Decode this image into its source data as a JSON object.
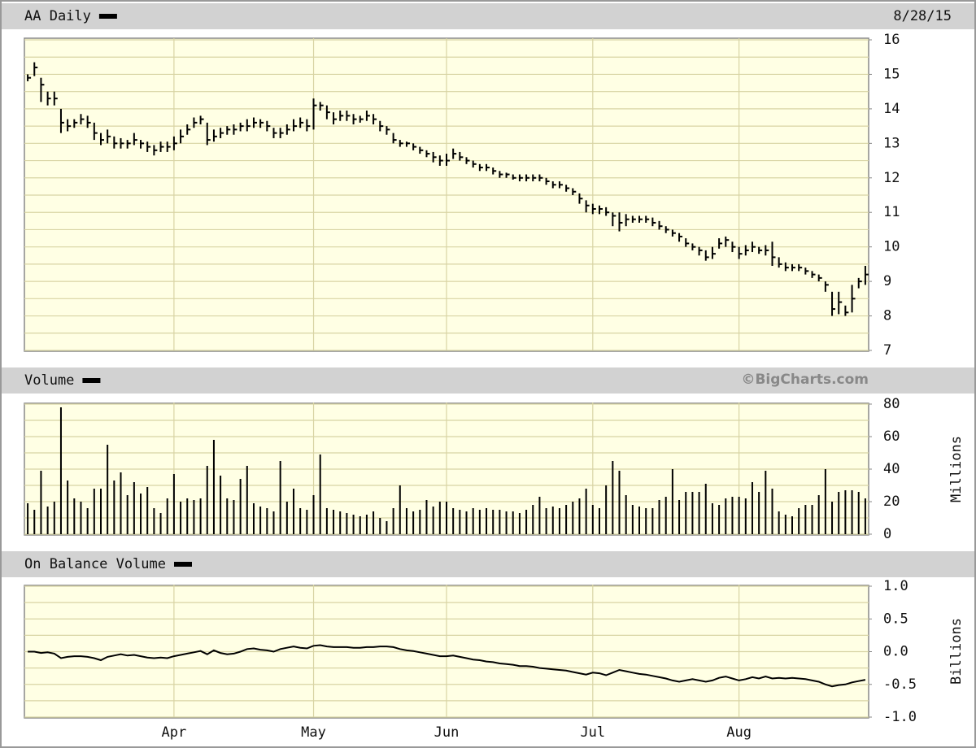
{
  "chart_data": [
    {
      "type": "ohlc",
      "title": "AA Daily",
      "date": "8/28/15",
      "color": "#000000",
      "ylim": [
        7,
        16
      ],
      "yticks": [
        7,
        8,
        9,
        10,
        11,
        12,
        13,
        14,
        15,
        16
      ],
      "ygrid": [
        7,
        7.5,
        8,
        8.5,
        9,
        9.5,
        10,
        10.5,
        11,
        11.5,
        12,
        12.5,
        13,
        13.5,
        14,
        14.5,
        15,
        15.5,
        16
      ],
      "high": [
        15.0,
        15.35,
        14.9,
        14.5,
        14.5,
        14.0,
        13.7,
        13.7,
        13.85,
        13.8,
        13.6,
        13.3,
        13.4,
        13.2,
        13.15,
        13.1,
        13.3,
        13.1,
        13.05,
        12.95,
        13.05,
        13.05,
        13.2,
        13.4,
        13.55,
        13.75,
        13.8,
        13.6,
        13.4,
        13.45,
        13.5,
        13.55,
        13.6,
        13.7,
        13.75,
        13.7,
        13.65,
        13.45,
        13.45,
        13.55,
        13.7,
        13.75,
        13.7,
        14.3,
        14.2,
        14.1,
        13.9,
        13.95,
        13.95,
        13.85,
        13.8,
        13.95,
        13.85,
        13.65,
        13.5,
        13.3,
        13.1,
        13.05,
        13.0,
        12.9,
        12.8,
        12.75,
        12.65,
        12.7,
        12.85,
        12.75,
        12.6,
        12.5,
        12.4,
        12.4,
        12.3,
        12.2,
        12.15,
        12.1,
        12.1,
        12.1,
        12.1,
        12.1,
        12.0,
        11.9,
        11.9,
        11.8,
        11.7,
        11.55,
        11.35,
        11.25,
        11.2,
        11.15,
        11.0,
        11.0,
        10.95,
        10.9,
        10.9,
        10.9,
        10.85,
        10.75,
        10.6,
        10.5,
        10.4,
        10.25,
        10.1,
        10.0,
        9.9,
        10.0,
        10.25,
        10.3,
        10.15,
        10.0,
        10.05,
        10.15,
        10.0,
        10.05,
        10.15,
        9.7,
        9.55,
        9.5,
        9.5,
        9.4,
        9.3,
        9.2,
        9.0,
        8.7,
        8.7,
        8.3,
        8.9,
        9.1,
        9.45
      ],
      "low": [
        14.8,
        14.95,
        14.2,
        14.1,
        14.1,
        13.3,
        13.35,
        13.45,
        13.55,
        13.45,
        13.1,
        12.95,
        13.0,
        12.85,
        12.85,
        12.85,
        12.95,
        12.85,
        12.75,
        12.65,
        12.75,
        12.75,
        12.8,
        13.0,
        13.25,
        13.45,
        13.55,
        12.95,
        13.05,
        13.15,
        13.25,
        13.25,
        13.35,
        13.35,
        13.45,
        13.45,
        13.35,
        13.15,
        13.15,
        13.25,
        13.35,
        13.45,
        13.35,
        13.4,
        13.95,
        13.7,
        13.55,
        13.65,
        13.65,
        13.55,
        13.6,
        13.65,
        13.55,
        13.35,
        13.25,
        13.0,
        12.9,
        12.9,
        12.8,
        12.7,
        12.6,
        12.45,
        12.35,
        12.35,
        12.55,
        12.5,
        12.4,
        12.3,
        12.2,
        12.2,
        12.1,
        12.0,
        12.0,
        11.95,
        11.9,
        11.9,
        11.9,
        11.9,
        11.8,
        11.7,
        11.7,
        11.6,
        11.5,
        11.25,
        11.0,
        10.95,
        10.95,
        10.9,
        10.6,
        10.45,
        10.6,
        10.7,
        10.7,
        10.7,
        10.6,
        10.5,
        10.4,
        10.3,
        10.15,
        10.0,
        9.9,
        9.75,
        9.6,
        9.65,
        9.95,
        10.0,
        9.85,
        9.65,
        9.75,
        9.85,
        9.8,
        9.75,
        9.45,
        9.4,
        9.3,
        9.3,
        9.3,
        9.2,
        9.1,
        9.0,
        8.7,
        8.0,
        8.05,
        8.0,
        8.1,
        8.8,
        8.9
      ],
      "close": [
        14.9,
        15.2,
        14.7,
        14.3,
        14.3,
        13.6,
        13.5,
        13.6,
        13.7,
        13.6,
        13.3,
        13.1,
        13.2,
        13.0,
        13.0,
        13.0,
        13.1,
        13.0,
        12.9,
        12.8,
        12.9,
        12.9,
        13.0,
        13.2,
        13.4,
        13.6,
        13.7,
        13.1,
        13.2,
        13.3,
        13.4,
        13.4,
        13.5,
        13.5,
        13.6,
        13.6,
        13.5,
        13.3,
        13.3,
        13.4,
        13.5,
        13.6,
        13.5,
        14.1,
        14.1,
        13.9,
        13.7,
        13.8,
        13.8,
        13.7,
        13.7,
        13.8,
        13.7,
        13.5,
        13.4,
        13.1,
        13.0,
        13.0,
        12.9,
        12.8,
        12.7,
        12.6,
        12.5,
        12.5,
        12.7,
        12.6,
        12.5,
        12.4,
        12.3,
        12.3,
        12.2,
        12.1,
        12.1,
        12.0,
        12.0,
        12.0,
        12.0,
        12.0,
        11.9,
        11.8,
        11.8,
        11.7,
        11.6,
        11.4,
        11.2,
        11.1,
        11.1,
        11.0,
        10.9,
        10.7,
        10.8,
        10.8,
        10.8,
        10.8,
        10.7,
        10.6,
        10.5,
        10.4,
        10.3,
        10.1,
        10.0,
        9.9,
        9.7,
        9.8,
        10.1,
        10.2,
        10.0,
        9.8,
        9.9,
        10.0,
        9.9,
        9.9,
        9.7,
        9.5,
        9.4,
        9.4,
        9.4,
        9.3,
        9.2,
        9.1,
        8.9,
        8.2,
        8.4,
        8.1,
        8.5,
        9.0,
        9.2
      ]
    },
    {
      "type": "volume",
      "title": "Volume",
      "source": "©BigCharts.com",
      "y_label": "Millions",
      "color": "#000000",
      "ylim": [
        0,
        80
      ],
      "yticks": [
        0,
        20,
        40,
        60,
        80
      ],
      "ygrid": [
        0,
        10,
        20,
        30,
        40,
        50,
        60,
        70,
        80
      ],
      "values": [
        19,
        15,
        39,
        17,
        20,
        78,
        33,
        22,
        20,
        16,
        28,
        28,
        55,
        33,
        38,
        24,
        32,
        25,
        29,
        16,
        13,
        22,
        37,
        20,
        22,
        21,
        22,
        42,
        58,
        36,
        22,
        21,
        34,
        42,
        19,
        17,
        16,
        14,
        45,
        20,
        28,
        16,
        15,
        24,
        49,
        16,
        15,
        14,
        13,
        12,
        11,
        12,
        14,
        10,
        8,
        16,
        30,
        16,
        14,
        15,
        21,
        17,
        20,
        20,
        16,
        15,
        14,
        16,
        15,
        16,
        15,
        15,
        14,
        14,
        13,
        15,
        18,
        23,
        16,
        17,
        16,
        18,
        20,
        22,
        28,
        18,
        16,
        30,
        45,
        39,
        24,
        18,
        17,
        16,
        16,
        21,
        23,
        40,
        21,
        26,
        26,
        26,
        31,
        19,
        18,
        22,
        23,
        23,
        22,
        32,
        26,
        39,
        28,
        14,
        12,
        11,
        16,
        18,
        18,
        24,
        40,
        20,
        26,
        27,
        27,
        26,
        22
      ]
    },
    {
      "type": "line",
      "title": "On Balance Volume",
      "y_label": "Billions",
      "color": "#000000",
      "ylim": [
        -1,
        1
      ],
      "yticks": [
        {
          "value": -1,
          "label": "-1.0"
        },
        -0.5,
        {
          "value": 0,
          "label": "0.0"
        },
        0.5,
        {
          "value": 1,
          "label": "1.0"
        }
      ],
      "ygrid": [
        -1,
        -0.75,
        -0.5,
        -0.25,
        0,
        0.25,
        0.5,
        0.75,
        1
      ],
      "categories": [
        null,
        null,
        null,
        null,
        null,
        null,
        null,
        null,
        null,
        null,
        null,
        null,
        null,
        null,
        null,
        null,
        null,
        null,
        null,
        null,
        null,
        null,
        "Apr",
        null,
        null,
        null,
        null,
        null,
        null,
        null,
        null,
        null,
        null,
        null,
        null,
        null,
        null,
        null,
        null,
        null,
        null,
        null,
        null,
        "May",
        null,
        null,
        null,
        null,
        null,
        null,
        null,
        null,
        null,
        null,
        null,
        null,
        null,
        null,
        null,
        null,
        null,
        null,
        null,
        "Jun",
        null,
        null,
        null,
        null,
        null,
        null,
        null,
        null,
        null,
        null,
        null,
        null,
        null,
        null,
        null,
        null,
        null,
        null,
        null,
        null,
        null,
        "Jul",
        null,
        null,
        null,
        null,
        null,
        null,
        null,
        null,
        null,
        null,
        null,
        null,
        null,
        null,
        null,
        null,
        null,
        null,
        null,
        null,
        null,
        "Aug",
        null,
        null,
        null,
        null,
        null,
        null,
        null,
        null,
        null,
        null,
        null,
        null,
        null,
        null,
        null,
        null,
        null,
        null,
        null
      ],
      "values": [
        0.0,
        0.0,
        -0.02,
        -0.01,
        -0.03,
        -0.1,
        -0.08,
        -0.07,
        -0.07,
        -0.08,
        -0.1,
        -0.13,
        -0.08,
        -0.06,
        -0.04,
        -0.06,
        -0.05,
        -0.07,
        -0.09,
        -0.1,
        -0.09,
        -0.1,
        -0.07,
        -0.05,
        -0.03,
        -0.01,
        0.01,
        -0.04,
        0.02,
        -0.02,
        -0.04,
        -0.03,
        0.0,
        0.04,
        0.05,
        0.03,
        0.02,
        0.0,
        0.04,
        0.06,
        0.08,
        0.06,
        0.05,
        0.09,
        0.1,
        0.08,
        0.07,
        0.07,
        0.07,
        0.06,
        0.06,
        0.07,
        0.07,
        0.08,
        0.08,
        0.07,
        0.04,
        0.02,
        0.01,
        -0.01,
        -0.03,
        -0.05,
        -0.07,
        -0.07,
        -0.06,
        -0.08,
        -0.1,
        -0.12,
        -0.13,
        -0.15,
        -0.16,
        -0.18,
        -0.19,
        -0.2,
        -0.22,
        -0.22,
        -0.23,
        -0.25,
        -0.26,
        -0.27,
        -0.28,
        -0.29,
        -0.31,
        -0.33,
        -0.35,
        -0.32,
        -0.33,
        -0.36,
        -0.32,
        -0.28,
        -0.3,
        -0.32,
        -0.34,
        -0.35,
        -0.37,
        -0.39,
        -0.41,
        -0.44,
        -0.46,
        -0.44,
        -0.42,
        -0.44,
        -0.46,
        -0.44,
        -0.4,
        -0.38,
        -0.41,
        -0.44,
        -0.42,
        -0.39,
        -0.41,
        -0.38,
        -0.41,
        -0.4,
        -0.41,
        -0.4,
        -0.41,
        -0.42,
        -0.44,
        -0.46,
        -0.5,
        -0.53,
        -0.51,
        -0.5,
        -0.47,
        -0.45,
        -0.43
      ]
    }
  ]
}
